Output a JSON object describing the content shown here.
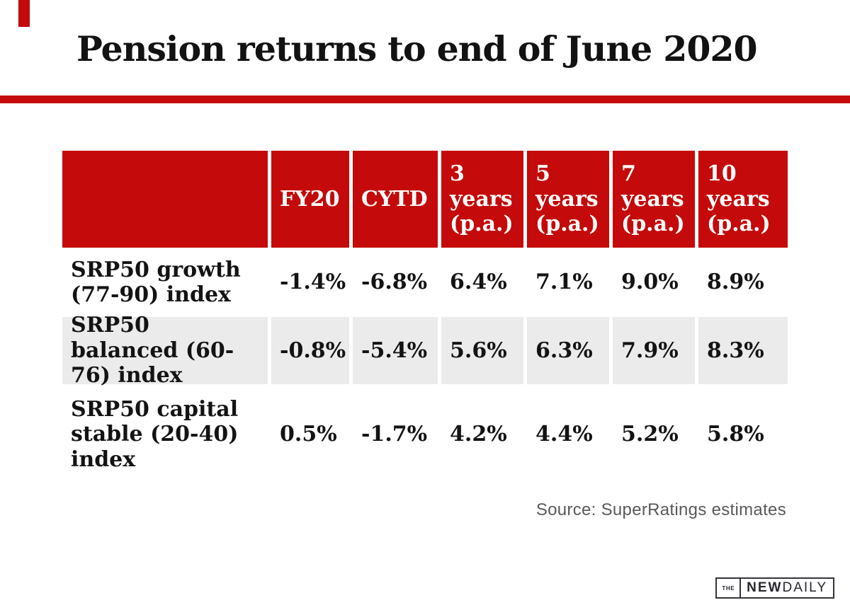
{
  "colors": {
    "accent_red": "#c40a0a",
    "row_alt_gray": "#ebebeb",
    "source_gray": "#58595b"
  },
  "chart_data": {
    "type": "table",
    "title": "Pension returns to end of June 2020",
    "columns": [
      "",
      "FY20",
      "CYTD",
      "3 years (p.a.)",
      "5 years (p.a.)",
      "7 years (p.a.)",
      "10 years (p.a.)"
    ],
    "rows": [
      {
        "label": "SRP50 growth (77-90) index",
        "values": [
          "-1.4%",
          "-6.8%",
          "6.4%",
          "7.1%",
          "9.0%",
          "8.9%"
        ]
      },
      {
        "label": "SRP50 balanced (60-76) index",
        "values": [
          "-0.8%",
          "-5.4%",
          "5.6%",
          "6.3%",
          "7.9%",
          "8.3%"
        ]
      },
      {
        "label": "SRP50 capital stable (20-40) index",
        "values": [
          "0.5%",
          "-1.7%",
          "4.2%",
          "4.4%",
          "5.2%",
          "5.8%"
        ]
      }
    ],
    "source": "Source: SuperRatings estimates"
  },
  "logo": {
    "the": "THE",
    "new": "NEW",
    "daily": "DAILY"
  }
}
